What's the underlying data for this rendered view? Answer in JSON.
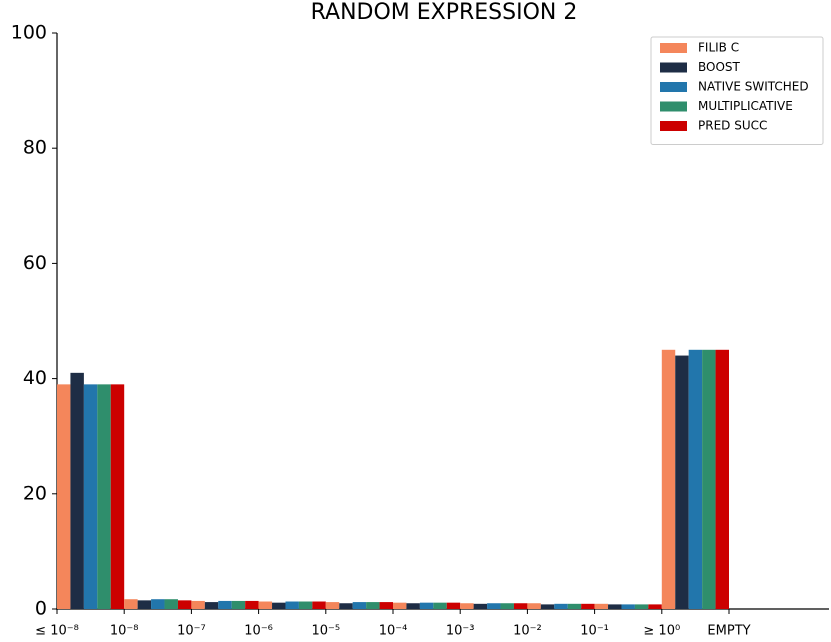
{
  "chart_data": {
    "type": "bar",
    "title": "RANDOM EXPRESSION 2",
    "categories": [
      "≤ 10⁻⁸",
      "10⁻⁸",
      "10⁻⁷",
      "10⁻⁶",
      "10⁻⁵",
      "10⁻⁴",
      "10⁻³",
      "10⁻²",
      "10⁻¹",
      "≥ 10⁰",
      "EMPTY"
    ],
    "series": [
      {
        "name": "FILIB C",
        "color": "#f4865b",
        "values": [
          39,
          1.7,
          1.4,
          1.3,
          1.2,
          1.1,
          1.0,
          1.0,
          0.9,
          45,
          0
        ]
      },
      {
        "name": "BOOST",
        "color": "#1e2d45",
        "values": [
          41,
          1.5,
          1.2,
          1.1,
          1.0,
          1.0,
          0.9,
          0.8,
          0.8,
          44,
          0
        ]
      },
      {
        "name": "NATIVE SWITCHED",
        "color": "#2276ac",
        "values": [
          39,
          1.7,
          1.4,
          1.3,
          1.2,
          1.1,
          1.0,
          0.9,
          0.8,
          45,
          0
        ]
      },
      {
        "name": "MULTIPLICATIVE",
        "color": "#2f8e6c",
        "values": [
          39,
          1.7,
          1.4,
          1.3,
          1.2,
          1.1,
          1.0,
          0.9,
          0.8,
          45,
          0
        ]
      },
      {
        "name": "PRED SUCC",
        "color": "#cc0000",
        "values": [
          39,
          1.5,
          1.4,
          1.3,
          1.2,
          1.1,
          1.0,
          0.9,
          0.8,
          45,
          0
        ]
      }
    ],
    "ylim": [
      0,
      100
    ],
    "yticks": [
      0,
      20,
      40,
      60,
      80,
      100
    ],
    "grid": false,
    "legend": "upper right"
  }
}
